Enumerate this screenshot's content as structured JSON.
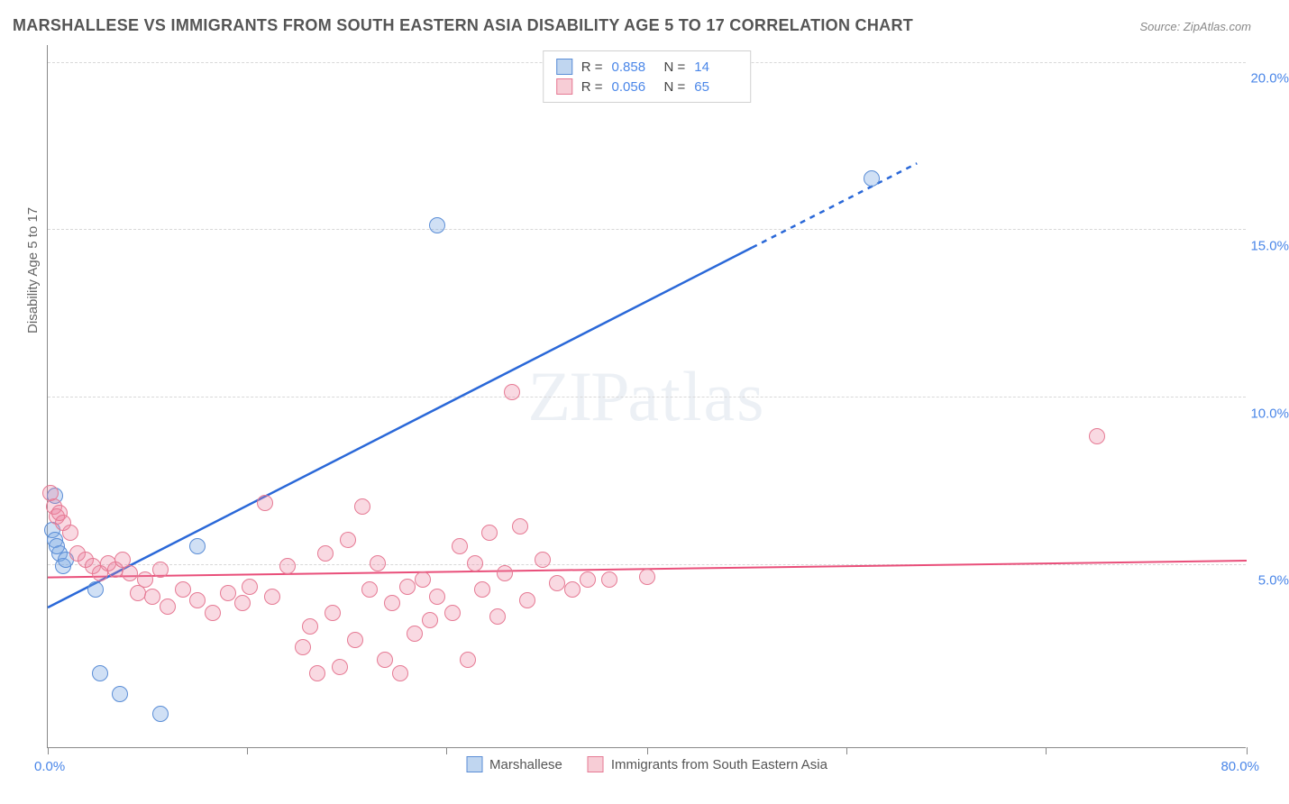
{
  "title": "MARSHALLESE VS IMMIGRANTS FROM SOUTH EASTERN ASIA DISABILITY AGE 5 TO 17 CORRELATION CHART",
  "source": "Source: ZipAtlas.com",
  "y_axis_title": "Disability Age 5 to 17",
  "watermark": {
    "zip": "ZIP",
    "atlas": "atlas"
  },
  "chart": {
    "type": "scatter",
    "xlim": [
      0,
      80
    ],
    "ylim": [
      0,
      21
    ],
    "x_ticks": [
      0,
      13.3,
      26.6,
      40,
      53.3,
      66.6,
      80
    ],
    "x_min_label": "0.0%",
    "x_max_label": "80.0%",
    "y_gridlines": [
      5.5,
      10.5,
      15.5,
      20.5
    ],
    "y_labels": [
      {
        "value": 5,
        "label": "5.0%"
      },
      {
        "value": 10,
        "label": "10.0%"
      },
      {
        "value": 15,
        "label": "15.0%"
      },
      {
        "value": 20,
        "label": "20.0%"
      }
    ],
    "background_color": "#ffffff",
    "grid_color": "#d8d8d8",
    "series": [
      {
        "id": "marshallese",
        "label": "Marshallese",
        "swatch_fill": "#c0d6f0",
        "swatch_border": "#5a8dd6",
        "point_fill": "rgba(120,165,225,0.35)",
        "point_stroke": "#5a8dd6",
        "point_radius": 9,
        "line_color": "#2a68d8",
        "line_width": 2.5,
        "r": "0.858",
        "n": "14",
        "trend": {
          "x1": 0,
          "y1": 4.2,
          "x2": 80,
          "y2": 22.5,
          "ext_x1": 47,
          "ext_x2": 58
        },
        "points": [
          {
            "x": 0.3,
            "y": 6.5
          },
          {
            "x": 0.5,
            "y": 6.2
          },
          {
            "x": 0.8,
            "y": 5.8
          },
          {
            "x": 1.0,
            "y": 5.4
          },
          {
            "x": 0.5,
            "y": 7.5
          },
          {
            "x": 1.2,
            "y": 5.6
          },
          {
            "x": 3.2,
            "y": 4.7
          },
          {
            "x": 3.5,
            "y": 2.2
          },
          {
            "x": 4.8,
            "y": 1.6
          },
          {
            "x": 7.5,
            "y": 1.0
          },
          {
            "x": 10,
            "y": 6.0
          },
          {
            "x": 26,
            "y": 15.6
          },
          {
            "x": 55,
            "y": 17.0
          },
          {
            "x": 0.6,
            "y": 6.0
          }
        ]
      },
      {
        "id": "sea",
        "label": "Immigrants from South Eastern Asia",
        "swatch_fill": "#f7cdd6",
        "swatch_border": "#e67a94",
        "point_fill": "rgba(235,130,160,0.30)",
        "point_stroke": "#e67a94",
        "point_radius": 9,
        "line_color": "#e94f7a",
        "line_width": 2,
        "r": "0.056",
        "n": "65",
        "trend": {
          "x1": 0,
          "y1": 5.1,
          "x2": 80,
          "y2": 5.6
        },
        "points": [
          {
            "x": 0.2,
            "y": 7.6
          },
          {
            "x": 0.4,
            "y": 7.2
          },
          {
            "x": 0.6,
            "y": 6.9
          },
          {
            "x": 0.8,
            "y": 7.0
          },
          {
            "x": 1.5,
            "y": 6.4
          },
          {
            "x": 2.0,
            "y": 5.8
          },
          {
            "x": 2.5,
            "y": 5.6
          },
          {
            "x": 3.0,
            "y": 5.4
          },
          {
            "x": 3.5,
            "y": 5.2
          },
          {
            "x": 4.0,
            "y": 5.5
          },
          {
            "x": 4.5,
            "y": 5.3
          },
          {
            "x": 5.0,
            "y": 5.6
          },
          {
            "x": 5.5,
            "y": 5.2
          },
          {
            "x": 6.0,
            "y": 4.6
          },
          {
            "x": 6.5,
            "y": 5.0
          },
          {
            "x": 7.0,
            "y": 4.5
          },
          {
            "x": 7.5,
            "y": 5.3
          },
          {
            "x": 8.0,
            "y": 4.2
          },
          {
            "x": 9.0,
            "y": 4.7
          },
          {
            "x": 10.0,
            "y": 4.4
          },
          {
            "x": 11.0,
            "y": 4.0
          },
          {
            "x": 12.0,
            "y": 4.6
          },
          {
            "x": 13.0,
            "y": 4.3
          },
          {
            "x": 13.5,
            "y": 4.8
          },
          {
            "x": 14.5,
            "y": 7.3
          },
          {
            "x": 15.0,
            "y": 4.5
          },
          {
            "x": 16.0,
            "y": 5.4
          },
          {
            "x": 17.0,
            "y": 3.0
          },
          {
            "x": 17.5,
            "y": 3.6
          },
          {
            "x": 18.0,
            "y": 2.2
          },
          {
            "x": 18.5,
            "y": 5.8
          },
          {
            "x": 19.0,
            "y": 4.0
          },
          {
            "x": 19.5,
            "y": 2.4
          },
          {
            "x": 20.0,
            "y": 6.2
          },
          {
            "x": 20.5,
            "y": 3.2
          },
          {
            "x": 21.0,
            "y": 7.2
          },
          {
            "x": 21.5,
            "y": 4.7
          },
          {
            "x": 22.0,
            "y": 5.5
          },
          {
            "x": 22.5,
            "y": 2.6
          },
          {
            "x": 23.0,
            "y": 4.3
          },
          {
            "x": 23.5,
            "y": 2.2
          },
          {
            "x": 24.0,
            "y": 4.8
          },
          {
            "x": 24.5,
            "y": 3.4
          },
          {
            "x": 25.0,
            "y": 5.0
          },
          {
            "x": 25.5,
            "y": 3.8
          },
          {
            "x": 26.0,
            "y": 4.5
          },
          {
            "x": 27.0,
            "y": 4.0
          },
          {
            "x": 27.5,
            "y": 6.0
          },
          {
            "x": 28.0,
            "y": 2.6
          },
          {
            "x": 28.5,
            "y": 5.5
          },
          {
            "x": 29.0,
            "y": 4.7
          },
          {
            "x": 29.5,
            "y": 6.4
          },
          {
            "x": 30.0,
            "y": 3.9
          },
          {
            "x": 30.5,
            "y": 5.2
          },
          {
            "x": 31.0,
            "y": 10.6
          },
          {
            "x": 31.5,
            "y": 6.6
          },
          {
            "x": 32.0,
            "y": 4.4
          },
          {
            "x": 33.0,
            "y": 5.6
          },
          {
            "x": 34.0,
            "y": 4.9
          },
          {
            "x": 35.0,
            "y": 4.7
          },
          {
            "x": 36.0,
            "y": 5.0
          },
          {
            "x": 37.5,
            "y": 5.0
          },
          {
            "x": 40.0,
            "y": 5.1
          },
          {
            "x": 70.0,
            "y": 9.3
          },
          {
            "x": 1.0,
            "y": 6.7
          }
        ]
      }
    ]
  },
  "legend_stats": {
    "r_label": "R =",
    "n_label": "N ="
  }
}
